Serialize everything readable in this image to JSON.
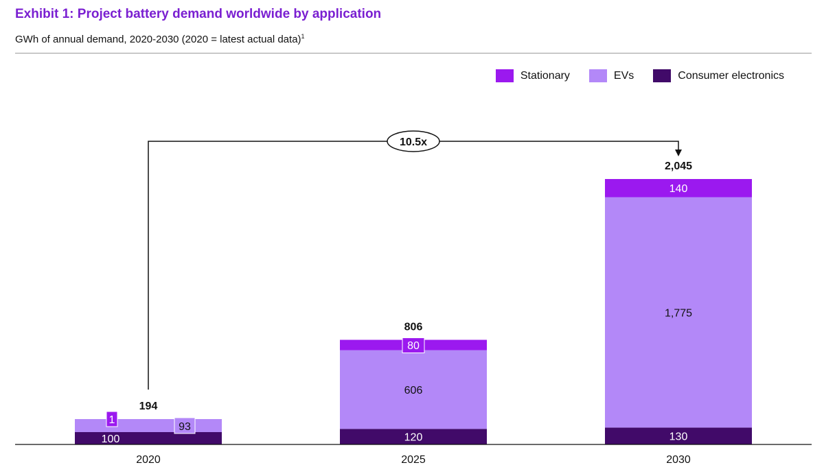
{
  "header": {
    "title": "Exhibit 1: Project battery demand worldwide by application",
    "subtitle": "GWh of annual demand, 2020-2030 (2020 = latest actual data)",
    "subtitle_footnote": "1"
  },
  "colors": {
    "title": "#7a1fd1",
    "stationary": "#9b19ef",
    "evs": "#b388f8",
    "consumer_electronics": "#410a69"
  },
  "legend": [
    {
      "label": "Stationary",
      "color": "#9b19ef"
    },
    {
      "label": "EVs",
      "color": "#b388f8"
    },
    {
      "label": "Consumer electronics",
      "color": "#410a69"
    }
  ],
  "chart_data": {
    "type": "bar",
    "stacked": true,
    "categories": [
      "2020",
      "2025",
      "2030"
    ],
    "series": [
      {
        "name": "Consumer electronics",
        "values": [
          100,
          120,
          130
        ],
        "labels": [
          "100",
          "120",
          "130"
        ]
      },
      {
        "name": "EVs",
        "values": [
          93,
          606,
          1775
        ],
        "labels": [
          "93",
          "606",
          "1,775"
        ]
      },
      {
        "name": "Stationary",
        "values": [
          1,
          80,
          140
        ],
        "labels": [
          "1",
          "80",
          "140"
        ]
      }
    ],
    "totals": [
      "194",
      "806",
      "2,045"
    ],
    "annotation": {
      "label": "10.5x",
      "from": "2020",
      "to": "2030"
    },
    "ylim": [
      0,
      2100
    ],
    "legend_position": "top-right",
    "grid": false
  }
}
